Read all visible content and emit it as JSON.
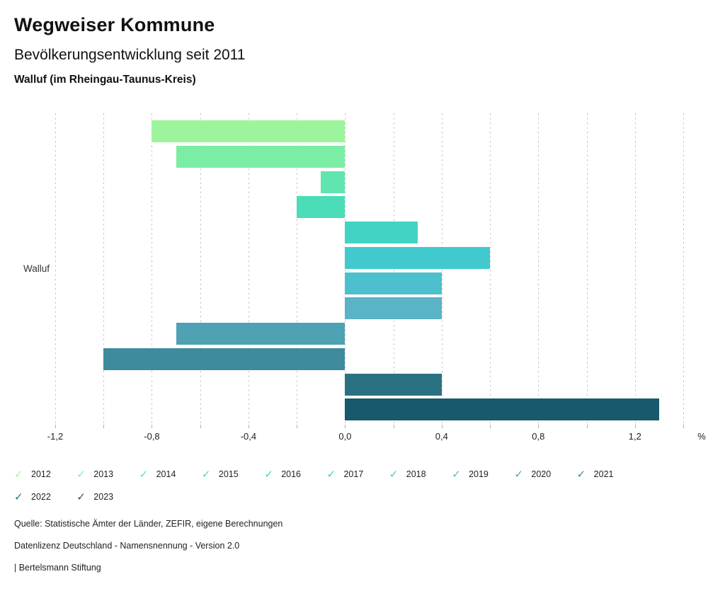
{
  "header": {
    "title": "Wegweiser Kommune",
    "subtitle": "Bevölkerungsentwicklung seit 2011",
    "region": "Walluf (im Rheingau-Taunus-Kreis)"
  },
  "chart_data": {
    "type": "bar",
    "orientation": "horizontal",
    "group_label": "Walluf",
    "unit": "%",
    "categories": [
      "2012",
      "2013",
      "2014",
      "2015",
      "2016",
      "2017",
      "2018",
      "2019",
      "2020",
      "2021",
      "2022",
      "2023"
    ],
    "values": [
      -0.8,
      -0.7,
      -0.1,
      -0.2,
      0.3,
      0.6,
      0.4,
      0.4,
      -0.7,
      -1.0,
      0.4,
      1.3
    ],
    "colors": [
      "#9CF59C",
      "#7CEDA4",
      "#5FE5AD",
      "#4BDCB8",
      "#43D3C3",
      "#41C9CE",
      "#4CC0CD",
      "#5BB3C6",
      "#4FA1B4",
      "#3E8B9D",
      "#2A7282",
      "#165A6B"
    ],
    "xlim": [
      -1.2,
      1.4
    ],
    "grid_step": 0.2,
    "grid": true,
    "legend_position": "bottom",
    "x_ticks": [
      {
        "value": -1.2,
        "label": "-1,2"
      },
      {
        "value": -1.0,
        "label": ""
      },
      {
        "value": -0.8,
        "label": "-0,8"
      },
      {
        "value": -0.6,
        "label": ""
      },
      {
        "value": -0.4,
        "label": "-0,4"
      },
      {
        "value": -0.2,
        "label": ""
      },
      {
        "value": 0.0,
        "label": "0,0"
      },
      {
        "value": 0.2,
        "label": ""
      },
      {
        "value": 0.4,
        "label": "0,4"
      },
      {
        "value": 0.6,
        "label": ""
      },
      {
        "value": 0.8,
        "label": "0,8"
      },
      {
        "value": 1.0,
        "label": ""
      },
      {
        "value": 1.2,
        "label": "1,2"
      },
      {
        "value": 1.4,
        "label": ""
      }
    ]
  },
  "icons": {
    "legend_check": "✓"
  },
  "footer": {
    "source": "Quelle: Statistische Ämter der Länder, ZEFIR, eigene Berechnungen",
    "license": "Datenlizenz Deutschland - Namensnennung - Version 2.0",
    "attribution": "| Bertelsmann Stiftung"
  }
}
